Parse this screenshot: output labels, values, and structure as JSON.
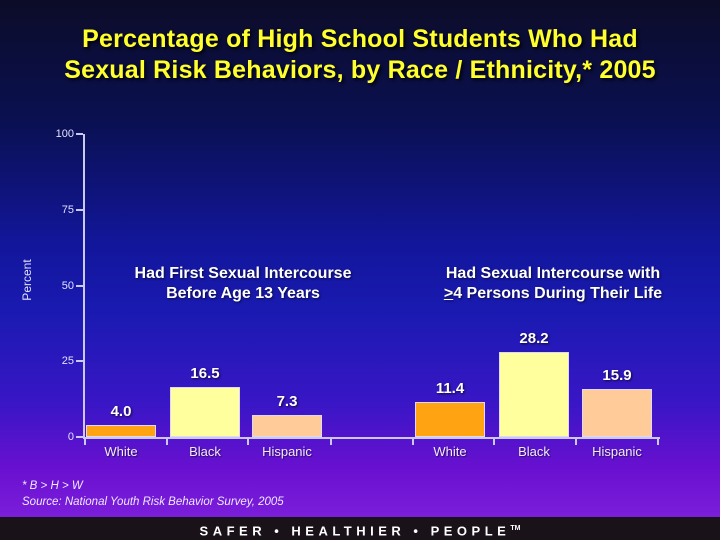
{
  "title": {
    "line1": "Percentage of High School Students Who Had",
    "line2": "Sexual Risk Behaviors, by Race / Ethnicity,* 2005"
  },
  "chart_data": {
    "type": "bar",
    "ylabel": "Percent",
    "ylim": [
      0,
      100
    ],
    "yticks": [
      0,
      25,
      50,
      75,
      100
    ],
    "grid": false,
    "legend": "none",
    "bar_colors": [
      "#ffa313",
      "#ffff9e",
      "#ffcc99"
    ],
    "groups": [
      {
        "caption_line1": "Had First Sexual Intercourse",
        "caption_line2_prefix": "",
        "caption_line2_rest": "Before Age 13 Years",
        "categories": [
          "White",
          "Black",
          "Hispanic"
        ],
        "values": [
          4.0,
          16.5,
          7.3
        ]
      },
      {
        "caption_line1": "Had Sexual Intercourse with",
        "caption_line2_prefix": ">",
        "caption_line2_rest": "4 Persons During Their Life",
        "categories": [
          "White",
          "Black",
          "Hispanic"
        ],
        "values": [
          11.4,
          28.2,
          15.9
        ]
      }
    ]
  },
  "footnotes": {
    "note1": "* B > H > W",
    "note2": "Source: National Youth Risk Behavior Survey, 2005"
  },
  "banner": {
    "text": "SAFER • HEALTHIER • PEOPLE",
    "tm": "TM"
  }
}
